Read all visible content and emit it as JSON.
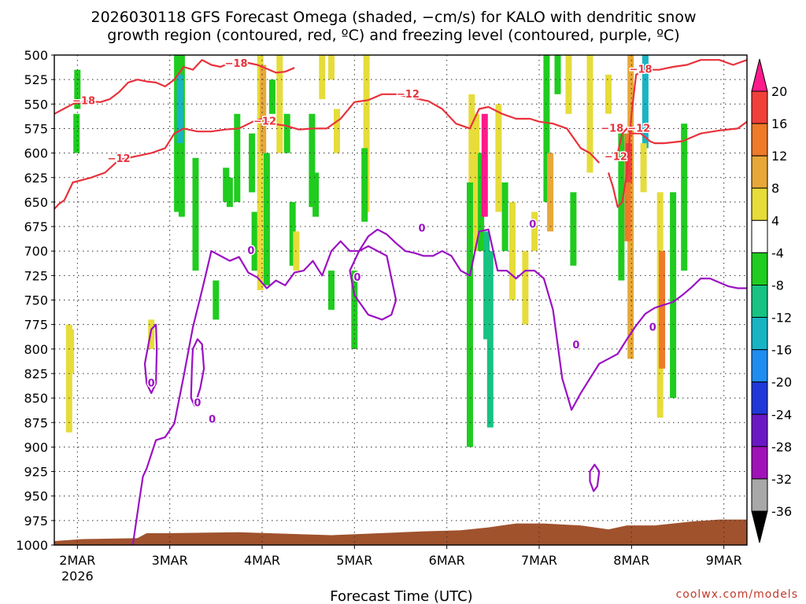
{
  "chart_data": {
    "type": "time-height",
    "title_line1": "2026030118 GFS Forecast Omega (shaded, −cm/s) for KALO with dendritic snow",
    "title_line2": "growth region (contoured, red, ºC) and freezing level (contoured, purple, ºC)",
    "xlabel": "Forecast Time (UTC)",
    "ylabel": "",
    "watermark": "coolwx.com/models",
    "x_ticks": [
      {
        "t": 0.25,
        "label": "2MAR",
        "sub": "2026"
      },
      {
        "t": 1.25,
        "label": "3MAR",
        "sub": ""
      },
      {
        "t": 2.25,
        "label": "4MAR",
        "sub": ""
      },
      {
        "t": 3.25,
        "label": "5MAR",
        "sub": ""
      },
      {
        "t": 4.25,
        "label": "6MAR",
        "sub": ""
      },
      {
        "t": 5.25,
        "label": "7MAR",
        "sub": ""
      },
      {
        "t": 6.25,
        "label": "8MAR",
        "sub": ""
      },
      {
        "t": 7.25,
        "label": "9MAR",
        "sub": ""
      }
    ],
    "xlim_days": [
      0.0,
      7.5
    ],
    "x_unit": "days since 2026-03-01 18 UTC",
    "y_ticks": [
      500,
      525,
      550,
      575,
      600,
      625,
      650,
      675,
      700,
      725,
      750,
      775,
      800,
      825,
      850,
      875,
      900,
      925,
      950,
      975,
      1000
    ],
    "ylim_hpa": [
      500,
      1000
    ],
    "y_unit": "hPa",
    "colorbar": {
      "boundaries": [
        20,
        16,
        12,
        8,
        4,
        -4,
        -8,
        -12,
        -16,
        -20,
        -24,
        -28,
        -32,
        -36
      ],
      "labels": [
        "20",
        "16",
        "12",
        "8",
        "4",
        "-4",
        "-8",
        "-12",
        "-16",
        "-20",
        "-24",
        "-28",
        "-32",
        "-36"
      ],
      "colors": [
        "#ff1a8c",
        "#f0403a",
        "#ee7a2a",
        "#e8a838",
        "#e6dc3a",
        "#ffffff",
        "#1fcc1f",
        "#17c282",
        "#19b4c4",
        "#1e8cf0",
        "#2038d8",
        "#6a18c4",
        "#a012b8",
        "#a8a8a8",
        "#000000"
      ]
    },
    "shading": [
      {
        "t": 0.24,
        "p": [
          560,
          600
        ],
        "v": -6
      },
      {
        "t": 0.25,
        "p": [
          515,
          555
        ],
        "v": -6
      },
      {
        "t": 0.16,
        "p": [
          775,
          885
        ],
        "v": 5
      },
      {
        "t": 0.18,
        "p": [
          780,
          825
        ],
        "v": 5
      },
      {
        "t": 1.05,
        "p": [
          770,
          800
        ],
        "v": 5
      },
      {
        "t": 1.33,
        "p": [
          500,
          660
        ],
        "v": -7
      },
      {
        "t": 1.38,
        "p": [
          500,
          665
        ],
        "v": -6
      },
      {
        "t": 1.36,
        "p": [
          520,
          590
        ],
        "v": -15
      },
      {
        "t": 1.53,
        "p": [
          605,
          720
        ],
        "v": -6
      },
      {
        "t": 1.75,
        "p": [
          730,
          770
        ],
        "v": -6
      },
      {
        "t": 1.86,
        "p": [
          615,
          650
        ],
        "v": -6
      },
      {
        "t": 1.9,
        "p": [
          625,
          655
        ],
        "v": -6
      },
      {
        "t": 1.98,
        "p": [
          560,
          650
        ],
        "v": -6
      },
      {
        "t": 2.14,
        "p": [
          580,
          640
        ],
        "v": -6
      },
      {
        "t": 2.17,
        "p": [
          660,
          720
        ],
        "v": -6
      },
      {
        "t": 2.23,
        "p": [
          500,
          740
        ],
        "v": 5
      },
      {
        "t": 2.26,
        "p": [
          510,
          600
        ],
        "v": 9
      },
      {
        "t": 2.3,
        "p": [
          600,
          735
        ],
        "v": -6
      },
      {
        "t": 2.36,
        "p": [
          525,
          560
        ],
        "v": -6
      },
      {
        "t": 2.44,
        "p": [
          500,
          600
        ],
        "v": 5
      },
      {
        "t": 2.52,
        "p": [
          560,
          600
        ],
        "v": -6
      },
      {
        "t": 2.58,
        "p": [
          650,
          715
        ],
        "v": -6
      },
      {
        "t": 2.62,
        "p": [
          680,
          720
        ],
        "v": 5
      },
      {
        "t": 2.79,
        "p": [
          560,
          655
        ],
        "v": -6
      },
      {
        "t": 2.83,
        "p": [
          620,
          665
        ],
        "v": -6
      },
      {
        "t": 2.9,
        "p": [
          500,
          545
        ],
        "v": 5
      },
      {
        "t": 3.0,
        "p": [
          500,
          525
        ],
        "v": 5
      },
      {
        "t": 3.06,
        "p": [
          555,
          600
        ],
        "v": 5
      },
      {
        "t": 3.0,
        "p": [
          720,
          760
        ],
        "v": -6
      },
      {
        "t": 3.25,
        "p": [
          720,
          800
        ],
        "v": -7
      },
      {
        "t": 3.38,
        "p": [
          500,
          660
        ],
        "v": 5
      },
      {
        "t": 3.36,
        "p": [
          595,
          670
        ],
        "v": -6
      },
      {
        "t": 4.52,
        "p": [
          540,
          680
        ],
        "v": 5
      },
      {
        "t": 4.57,
        "p": [
          560,
          700
        ],
        "v": 5
      },
      {
        "t": 4.5,
        "p": [
          630,
          900
        ],
        "v": -7
      },
      {
        "t": 4.62,
        "p": [
          600,
          700
        ],
        "v": -7
      },
      {
        "t": 4.68,
        "p": [
          680,
          790
        ],
        "v": -10
      },
      {
        "t": 4.66,
        "p": [
          560,
          665
        ],
        "v": 20
      },
      {
        "t": 4.72,
        "p": [
          700,
          880
        ],
        "v": -8
      },
      {
        "t": 4.81,
        "p": [
          550,
          660
        ],
        "v": 5
      },
      {
        "t": 4.88,
        "p": [
          630,
          700
        ],
        "v": -6
      },
      {
        "t": 4.96,
        "p": [
          650,
          750
        ],
        "v": 5
      },
      {
        "t": 5.1,
        "p": [
          700,
          775
        ],
        "v": 5
      },
      {
        "t": 5.2,
        "p": [
          660,
          700
        ],
        "v": 5
      },
      {
        "t": 5.33,
        "p": [
          500,
          650
        ],
        "v": -7
      },
      {
        "t": 5.37,
        "p": [
          600,
          680
        ],
        "v": 9
      },
      {
        "t": 5.45,
        "p": [
          500,
          540
        ],
        "v": -6
      },
      {
        "t": 5.57,
        "p": [
          500,
          560
        ],
        "v": 5
      },
      {
        "t": 5.62,
        "p": [
          640,
          715
        ],
        "v": -6
      },
      {
        "t": 5.8,
        "p": [
          500,
          620
        ],
        "v": 5
      },
      {
        "t": 6.0,
        "p": [
          520,
          560
        ],
        "v": 5
      },
      {
        "t": 6.14,
        "p": [
          580,
          730
        ],
        "v": -6
      },
      {
        "t": 6.24,
        "p": [
          500,
          810
        ],
        "v": 9
      },
      {
        "t": 6.21,
        "p": [
          580,
          690
        ],
        "v": 14
      },
      {
        "t": 6.22,
        "p": [
          590,
          630
        ],
        "v": 18
      },
      {
        "t": 6.4,
        "p": [
          500,
          595
        ],
        "v": -12
      },
      {
        "t": 6.38,
        "p": [
          590,
          640
        ],
        "v": 5
      },
      {
        "t": 6.56,
        "p": [
          640,
          870
        ],
        "v": 5
      },
      {
        "t": 6.58,
        "p": [
          700,
          820
        ],
        "v": 13
      },
      {
        "t": 6.7,
        "p": [
          640,
          850
        ],
        "v": -7
      },
      {
        "t": 6.82,
        "p": [
          570,
          720
        ],
        "v": -7
      }
    ],
    "contours": [
      {
        "level": -18,
        "color": "#e8323c",
        "t": [
          0.0,
          0.1,
          0.2,
          0.35,
          0.5,
          0.6,
          0.7,
          0.8,
          0.9,
          1.0,
          1.1,
          1.2,
          1.3,
          1.4,
          1.5,
          1.6,
          1.7,
          1.8,
          1.9,
          2.0,
          2.1,
          2.2,
          2.3,
          2.4,
          2.5,
          2.6
        ],
        "p": [
          560,
          555,
          550,
          547,
          548,
          545,
          538,
          528,
          525,
          527,
          528,
          532,
          525,
          512,
          515,
          505,
          510,
          512,
          508,
          512,
          508,
          510,
          514,
          518,
          517,
          513
        ]
      },
      {
        "level": -12,
        "color": "#e8323c",
        "t": [
          0.0,
          0.05,
          0.08,
          0.11,
          0.2,
          0.4,
          0.55,
          0.7,
          0.9,
          1.05,
          1.2,
          1.3,
          1.4,
          1.55,
          1.7,
          1.85,
          2.0,
          2.15,
          2.25,
          2.35,
          2.5,
          2.65,
          2.8,
          2.95,
          3.1,
          3.25,
          3.4,
          3.55,
          3.7,
          3.9,
          4.05,
          4.2,
          4.35,
          4.5,
          4.6,
          4.7,
          4.85,
          5.0,
          5.15,
          5.25,
          5.4,
          5.55,
          5.7,
          5.8,
          5.9
        ],
        "p": [
          657,
          652,
          650,
          648,
          630,
          625,
          620,
          607,
          603,
          600,
          595,
          580,
          575,
          578,
          578,
          576,
          575,
          568,
          565,
          570,
          572,
          576,
          575,
          575,
          565,
          548,
          546,
          540,
          540,
          544,
          547,
          555,
          570,
          575,
          555,
          553,
          560,
          565,
          565,
          568,
          570,
          575,
          595,
          600,
          610
        ]
      },
      {
        "level": -12,
        "color": "#e8323c",
        "t": [
          6.0,
          6.05,
          6.1,
          6.15,
          6.2,
          6.25,
          6.3,
          6.4,
          6.55,
          6.7,
          6.85,
          7.0,
          7.2,
          7.35,
          7.5
        ],
        "p": [
          620,
          635,
          655,
          650,
          620,
          560,
          520,
          515,
          515,
          512,
          510,
          505,
          505,
          510,
          505
        ]
      },
      {
        "level": -18,
        "color": "#e8323c",
        "t": [
          6.1,
          6.15,
          6.2,
          6.25,
          6.35,
          6.45,
          6.5,
          6.6,
          6.8,
          7.0,
          7.2,
          7.4,
          7.5
        ],
        "p": [
          600,
          580,
          575,
          580,
          580,
          588,
          590,
          590,
          588,
          580,
          577,
          575,
          568
        ]
      },
      {
        "level": 0,
        "color": "#9b10c4",
        "t": [
          0.85,
          0.92,
          0.96,
          1.0,
          1.1,
          1.2,
          1.3,
          1.4,
          1.5,
          1.6,
          1.7,
          1.8,
          1.9,
          2.0,
          2.1,
          2.2,
          2.3,
          2.4,
          2.5,
          2.6,
          2.7,
          2.8,
          2.9,
          3.0,
          3.1,
          3.2,
          3.3,
          3.4,
          3.5,
          3.6,
          3.7,
          3.8,
          3.9,
          4.0,
          4.1,
          4.2,
          4.3,
          4.4,
          4.5,
          4.6,
          4.7,
          4.8,
          4.9,
          5.0,
          5.1,
          5.2,
          5.3,
          5.4,
          5.5,
          5.6,
          5.7,
          5.8,
          5.9,
          6.0,
          6.1,
          6.2,
          6.3,
          6.4,
          6.5,
          6.6,
          6.7,
          6.8,
          6.9,
          7.0,
          7.1,
          7.2,
          7.3,
          7.4,
          7.5
        ],
        "p": [
          1000,
          955,
          930,
          922,
          893,
          890,
          876,
          828,
          778,
          740,
          700,
          705,
          710,
          706,
          722,
          727,
          738,
          730,
          735,
          722,
          720,
          710,
          725,
          700,
          690,
          700,
          700,
          685,
          678,
          683,
          692,
          700,
          702,
          705,
          705,
          700,
          705,
          720,
          725,
          680,
          678,
          720,
          720,
          728,
          720,
          720,
          728,
          760,
          830,
          862,
          845,
          830,
          815,
          810,
          805,
          790,
          776,
          764,
          758,
          755,
          752,
          745,
          737,
          728,
          728,
          732,
          736,
          738,
          738
        ]
      },
      {
        "level": 0,
        "color": "#9b10c4",
        "closed": true,
        "t": [
          1.0,
          1.05,
          1.1,
          1.11,
          1.1,
          1.05,
          1.0,
          0.98
        ],
        "p": [
          805,
          780,
          775,
          800,
          835,
          845,
          835,
          815
        ]
      },
      {
        "level": 0,
        "color": "#9b10c4",
        "closed": true,
        "t": [
          1.5,
          1.55,
          1.6,
          1.62,
          1.58,
          1.52,
          1.48,
          1.49
        ],
        "p": [
          800,
          790,
          795,
          820,
          840,
          858,
          850,
          820
        ]
      },
      {
        "level": 0,
        "color": "#9b10c4",
        "closed": true,
        "t": [
          3.2,
          3.3,
          3.4,
          3.6,
          3.7,
          3.65,
          3.55,
          3.4,
          3.25,
          3.22
        ],
        "p": [
          720,
          700,
          695,
          705,
          750,
          765,
          770,
          765,
          745,
          730
        ]
      },
      {
        "level": 0,
        "color": "#9b10c4",
        "closed": true,
        "t": [
          5.8,
          5.85,
          5.9,
          5.88,
          5.84,
          5.8
        ],
        "p": [
          925,
          918,
          925,
          940,
          945,
          935
        ]
      }
    ],
    "contour_labels": [
      {
        "text": "−18",
        "t": 0.32,
        "p": 547,
        "color": "#e8323c"
      },
      {
        "text": "−18",
        "t": 1.97,
        "p": 509,
        "color": "#e8323c"
      },
      {
        "text": "−12",
        "t": 0.7,
        "p": 606,
        "color": "#e8323c"
      },
      {
        "text": "−12",
        "t": 2.28,
        "p": 568,
        "color": "#e8323c"
      },
      {
        "text": "−12",
        "t": 3.83,
        "p": 540,
        "color": "#e8323c"
      },
      {
        "text": "−12",
        "t": 6.33,
        "p": 575,
        "color": "#e8323c"
      },
      {
        "text": "−12",
        "t": 6.08,
        "p": 604,
        "color": "#e8323c"
      },
      {
        "text": "−18",
        "t": 6.04,
        "p": 575,
        "color": "#e8323c"
      },
      {
        "text": "−18",
        "t": 6.35,
        "p": 515,
        "color": "#e8323c"
      },
      {
        "text": "0",
        "t": 2.13,
        "p": 700,
        "color": "#9b10c4"
      },
      {
        "text": "0",
        "t": 3.28,
        "p": 727,
        "color": "#9b10c4"
      },
      {
        "text": "0",
        "t": 3.98,
        "p": 677,
        "color": "#9b10c4"
      },
      {
        "text": "0",
        "t": 5.18,
        "p": 673,
        "color": "#9b10c4"
      },
      {
        "text": "0",
        "t": 1.05,
        "p": 835,
        "color": "#9b10c4"
      },
      {
        "text": "0",
        "t": 1.55,
        "p": 855,
        "color": "#9b10c4"
      },
      {
        "text": "0",
        "t": 1.71,
        "p": 872,
        "color": "#9b10c4"
      },
      {
        "text": "0",
        "t": 6.48,
        "p": 778,
        "color": "#9b10c4"
      },
      {
        "text": "0",
        "t": 5.65,
        "p": 796,
        "color": "#9b10c4"
      }
    ],
    "terrain": {
      "color": "#a0522d",
      "t": [
        0.0,
        0.3,
        0.9,
        1.0,
        1.2,
        2.0,
        3.0,
        4.0,
        4.4,
        4.7,
        5.0,
        5.3,
        5.7,
        6.0,
        6.2,
        6.5,
        6.9,
        7.2,
        7.5
      ],
      "p": [
        996,
        994,
        993,
        988,
        988,
        987,
        990,
        986,
        985,
        982,
        978,
        978,
        980,
        984,
        980,
        980,
        976,
        974,
        974
      ]
    }
  }
}
